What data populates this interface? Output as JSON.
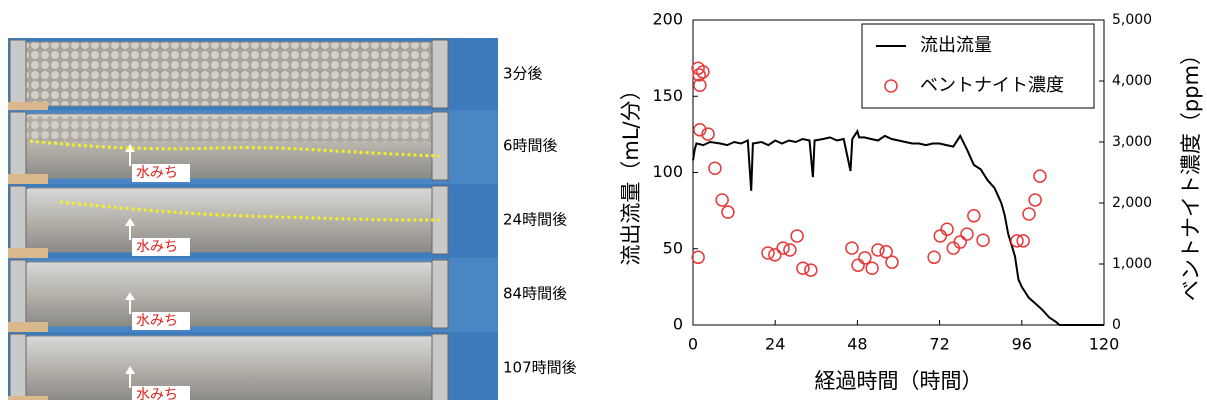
{
  "photos": {
    "labels": [
      "3分後",
      "6時間後",
      "24時間後",
      "84時間後",
      "107時間後"
    ],
    "annotation": "水みち"
  },
  "chart_data": {
    "type": "line-scatter",
    "xlabel": "経過時間（時間）",
    "ylabel": "流出流量（mL/分）",
    "y2label": "ベントナイト濃度（ppm）",
    "xlim": [
      0,
      120
    ],
    "xticks": [
      0,
      24,
      48,
      72,
      96,
      120
    ],
    "ylim": [
      0,
      200
    ],
    "yticks": [
      0,
      50,
      100,
      150,
      200
    ],
    "y2lim": [
      0,
      5000
    ],
    "y2ticks": [
      0,
      {
        "value": 1000,
        "label": "1,000"
      },
      {
        "value": 2000,
        "label": "2,000"
      },
      {
        "value": 3000,
        "label": "3,000"
      },
      {
        "value": 4000,
        "label": "4,000"
      },
      {
        "value": 5000,
        "label": "5,000"
      }
    ],
    "legend": "upper right",
    "series": [
      {
        "name": "流出流量",
        "kind": "line",
        "color": "#000000",
        "x": [
          0,
          0.5,
          1,
          3,
          5,
          8,
          10,
          12,
          14,
          16,
          17,
          17.5,
          20,
          22,
          24,
          26,
          28,
          30,
          32,
          34,
          35,
          35.5,
          38,
          40,
          42,
          44,
          46,
          46.5,
          48,
          48.5,
          50,
          52,
          54,
          56,
          58,
          60,
          62,
          64,
          66,
          68,
          70,
          72,
          74,
          76,
          78,
          80,
          82,
          84,
          86,
          88,
          90,
          91,
          92,
          94,
          95,
          96,
          98,
          100,
          102,
          104,
          106,
          107,
          120
        ],
        "values": [
          108,
          115,
          119,
          118,
          120,
          119,
          118,
          120,
          119,
          121,
          88,
          119,
          120,
          118,
          121,
          119,
          121,
          120,
          122,
          121,
          97,
          121,
          122,
          123,
          121,
          122,
          101,
          122,
          127,
          123,
          123,
          122,
          121,
          124,
          122,
          121,
          120,
          119,
          119,
          118,
          119,
          119,
          118,
          117,
          124,
          115,
          105,
          102,
          95,
          90,
          80,
          72,
          60,
          45,
          30,
          25,
          18,
          14,
          10,
          5,
          2,
          0,
          0
        ]
      },
      {
        "name": "ベントナイト濃度",
        "kind": "scatter",
        "axis": "y2",
        "color": "#e8393a",
        "x": [
          1.5,
          1.8,
          2,
          2.9,
          2,
          4.4,
          6.4,
          8.5,
          10.2,
          1.5,
          21.9,
          23.9,
          26.3,
          28.3,
          30.4,
          32.1,
          34.4,
          46.4,
          48.2,
          50.2,
          52.3,
          54,
          56.4,
          58.1,
          70.4,
          72.2,
          74.2,
          76,
          78,
          80,
          82,
          84.7,
          94.6,
          96.4,
          98.1,
          99.9,
          101.3
        ],
        "values": [
          4210,
          4100,
          3930,
          4150,
          3200,
          3130,
          2570,
          2050,
          1850,
          1110,
          1180,
          1150,
          1260,
          1230,
          1460,
          930,
          900,
          1260,
          980,
          1100,
          930,
          1230,
          1200,
          1030,
          1110,
          1460,
          1570,
          1260,
          1360,
          1490,
          1790,
          1390,
          1380,
          1380,
          1820,
          2050,
          2440
        ]
      }
    ]
  }
}
